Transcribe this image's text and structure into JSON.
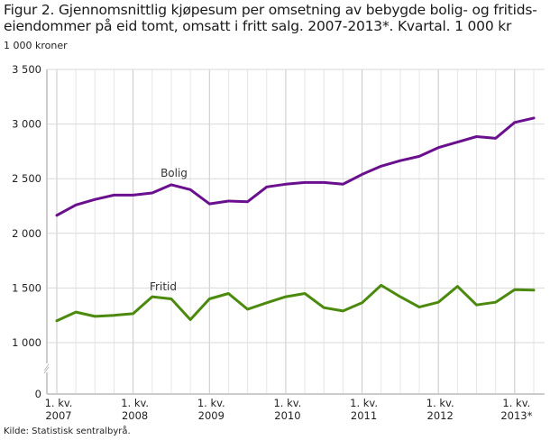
{
  "header": {
    "title": "Figur 2. Gjennomsnittlig kjøpesum per omsetning av bebygde bolig- og fritids-eiendommer på eid tomt, omsatt i fritt salg. 2007-2013*. Kvartal. 1 000 kr",
    "title_line1": "Figur 2. Gjennomsnittlig kjøpesum per omsetning av bebygde bolig- og fritids-",
    "title_line2": "eiendommer på eid tomt, omsatt i fritt salg. 2007-2013*. Kvartal. 1 000 kr",
    "unit": "1 000 kroner"
  },
  "footer": {
    "source": "Kilde: Statistisk sentralbyrå."
  },
  "colors": {
    "bolig": "#6a0f8e",
    "fritid": "#4b8a0d",
    "grid": "#d9d9d9",
    "grid_year": "#c8c8c8",
    "axis": "#cccccc"
  },
  "chart_data": {
    "type": "line",
    "title": "Figur 2. Gjennomsnittlig kjøpesum per omsetning av bebygde bolig- og fritids-eiendommer på eid tomt, omsatt i fritt salg. 2007-2013*. Kvartal. 1 000 kr",
    "xlabel": "",
    "ylabel": "1 000 kroner",
    "ylim": [
      0,
      3500
    ],
    "axis_break": [
      0,
      1000
    ],
    "yticks": [
      0,
      1000,
      1500,
      2000,
      2500,
      3000,
      3500
    ],
    "ytick_labels": [
      "0",
      "1 000",
      "1 500",
      "2 000",
      "2 500",
      "3 000",
      "3 500"
    ],
    "grid": true,
    "legend": "inline labels",
    "x": [
      "2007K1",
      "2007K2",
      "2007K3",
      "2007K4",
      "2008K1",
      "2008K2",
      "2008K3",
      "2008K4",
      "2009K1",
      "2009K2",
      "2009K3",
      "2009K4",
      "2010K1",
      "2010K2",
      "2010K3",
      "2010K4",
      "2011K1",
      "2011K2",
      "2011K3",
      "2011K4",
      "2012K1",
      "2012K2",
      "2012K3",
      "2012K4",
      "2013K1",
      "2013K2",
      "2013K3"
    ],
    "xtick_labels": [
      {
        "line1": "1. kv.",
        "line2": "2007",
        "index": 0
      },
      {
        "line1": "1. kv.",
        "line2": "2008",
        "index": 4
      },
      {
        "line1": "1. kv.",
        "line2": "2009",
        "index": 8
      },
      {
        "line1": "1. kv.",
        "line2": "2010",
        "index": 12
      },
      {
        "line1": "1. kv.",
        "line2": "2011",
        "index": 16
      },
      {
        "line1": "1. kv.",
        "line2": "2012",
        "index": 20
      },
      {
        "line1": "1. kv.",
        "line2": "2013*",
        "index": 24
      }
    ],
    "series": [
      {
        "name": "Bolig",
        "values": [
          2165,
          2260,
          2310,
          2350,
          2350,
          2370,
          2445,
          2400,
          2270,
          2295,
          2290,
          2425,
          2450,
          2465,
          2465,
          2450,
          2540,
          2615,
          2665,
          2705,
          2785,
          2835,
          2885,
          2870,
          3015,
          3055,
          null
        ]
      },
      {
        "name": "Fritid",
        "values": [
          1200,
          1280,
          1240,
          1250,
          1265,
          1420,
          1400,
          1210,
          1400,
          1450,
          1305,
          1365,
          1420,
          1450,
          1320,
          1290,
          1365,
          1525,
          1420,
          1325,
          1370,
          1515,
          1345,
          1370,
          1485,
          1480,
          null
        ]
      }
    ]
  }
}
